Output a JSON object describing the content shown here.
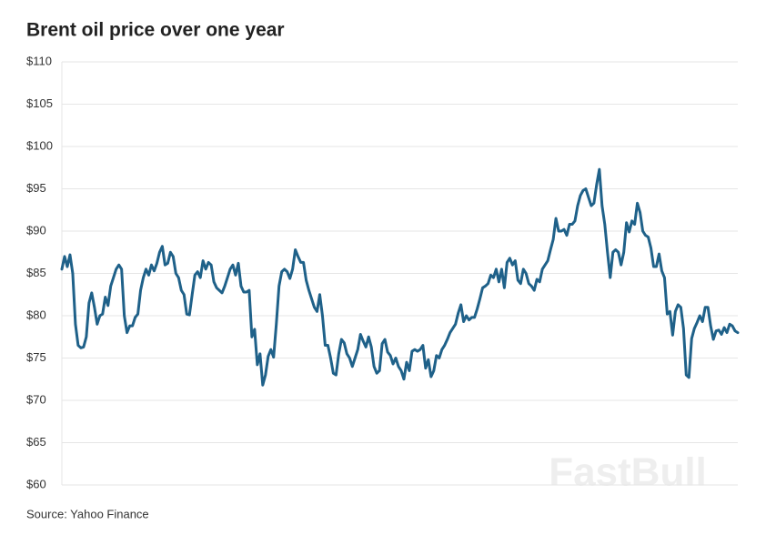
{
  "chart_data": {
    "type": "line",
    "title": "Brent oil price over one year",
    "source": "Source: Yahoo Finance",
    "watermark": "FastBull",
    "color": "#1f6189",
    "grid": true,
    "ylim": [
      60,
      110
    ],
    "yticks": [
      {
        "value": 60,
        "label": "$60"
      },
      {
        "value": 65,
        "label": "$65"
      },
      {
        "value": 70,
        "label": "$70"
      },
      {
        "value": 75,
        "label": "$75"
      },
      {
        "value": 80,
        "label": "$80"
      },
      {
        "value": 85,
        "label": "$85"
      },
      {
        "value": 90,
        "label": "$90"
      },
      {
        "value": 95,
        "label": "$95"
      },
      {
        "value": 100,
        "label": "$100"
      },
      {
        "value": 105,
        "label": "$105"
      },
      {
        "value": 110,
        "label": "$110"
      }
    ],
    "values": [
      85.5,
      87,
      85.8,
      87.2,
      85,
      79,
      76.5,
      76.2,
      76.3,
      77.5,
      81.5,
      82.7,
      81,
      79,
      80,
      80.2,
      82.2,
      81.2,
      83.5,
      84.5,
      85.5,
      86,
      85.5,
      80,
      78,
      78.8,
      78.8,
      79.8,
      80.2,
      83,
      84.5,
      85.5,
      84.8,
      86,
      85.3,
      86.2,
      87.5,
      88.2,
      86,
      86.2,
      87.5,
      87,
      85,
      84.5,
      83,
      82.5,
      80.2,
      80.1,
      82.5,
      84.8,
      85.2,
      84.5,
      86.5,
      85.5,
      86.3,
      86,
      84,
      83.3,
      83,
      82.7,
      83.5,
      84.5,
      85.5,
      86,
      84.8,
      86.2,
      83.5,
      82.8,
      82.8,
      83,
      77.5,
      78.4,
      74.2,
      75.5,
      71.8,
      73,
      75.2,
      76,
      75.1,
      79,
      83.5,
      85.2,
      85.5,
      85.2,
      84.4,
      85.5,
      87.8,
      87,
      86.3,
      86.3,
      84.2,
      83,
      82,
      81,
      80.5,
      82.5,
      80,
      76.5,
      76.5,
      75,
      73.2,
      73,
      75.5,
      77.2,
      76.8,
      75.5,
      75,
      74,
      75,
      76,
      77.8,
      77,
      76.3,
      77.5,
      76.3,
      74,
      73.2,
      73.5,
      76.7,
      77.2,
      75.7,
      75.3,
      74.3,
      75,
      74,
      73.5,
      72.5,
      74.5,
      73.5,
      75.8,
      76,
      75.8,
      76,
      76.5,
      73.8,
      74.8,
      72.8,
      73.5,
      75.3,
      75,
      76,
      76.5,
      77.2,
      78,
      78.5,
      79,
      80.3,
      81.3,
      79.3,
      80,
      79.5,
      79.8,
      79.8,
      80.8,
      82,
      83.3,
      83.5,
      83.8,
      84.8,
      84.5,
      85.5,
      84,
      85.5,
      83.3,
      86.3,
      86.8,
      86,
      86.5,
      84.2,
      83.8,
      85.5,
      85,
      83.8,
      83.5,
      83,
      84.3,
      84,
      85.5,
      86,
      86.5,
      87.8,
      89,
      91.5,
      90,
      90,
      90.2,
      89.5,
      90.8,
      90.8,
      91.2,
      93,
      94.2,
      94.8,
      95,
      94,
      93,
      93.3,
      95.5,
      97.3,
      93,
      90.8,
      87.5,
      84.5,
      87.5,
      87.8,
      87.5,
      86,
      87.5,
      91,
      89.9,
      91.2,
      90.8,
      93.3,
      92.2,
      90,
      89.5,
      89.3,
      88,
      85.8,
      85.8,
      87.3,
      85.3,
      84.5,
      80.2,
      80.5,
      77.7,
      80.5,
      81.3,
      81,
      78.5,
      73,
      72.7,
      77.3,
      78.5,
      79.2,
      80,
      79.3,
      81,
      81,
      78.8,
      77.2,
      78.2,
      78.3,
      77.8,
      78.6,
      78,
      79,
      78.8,
      78.2,
      78
    ]
  }
}
